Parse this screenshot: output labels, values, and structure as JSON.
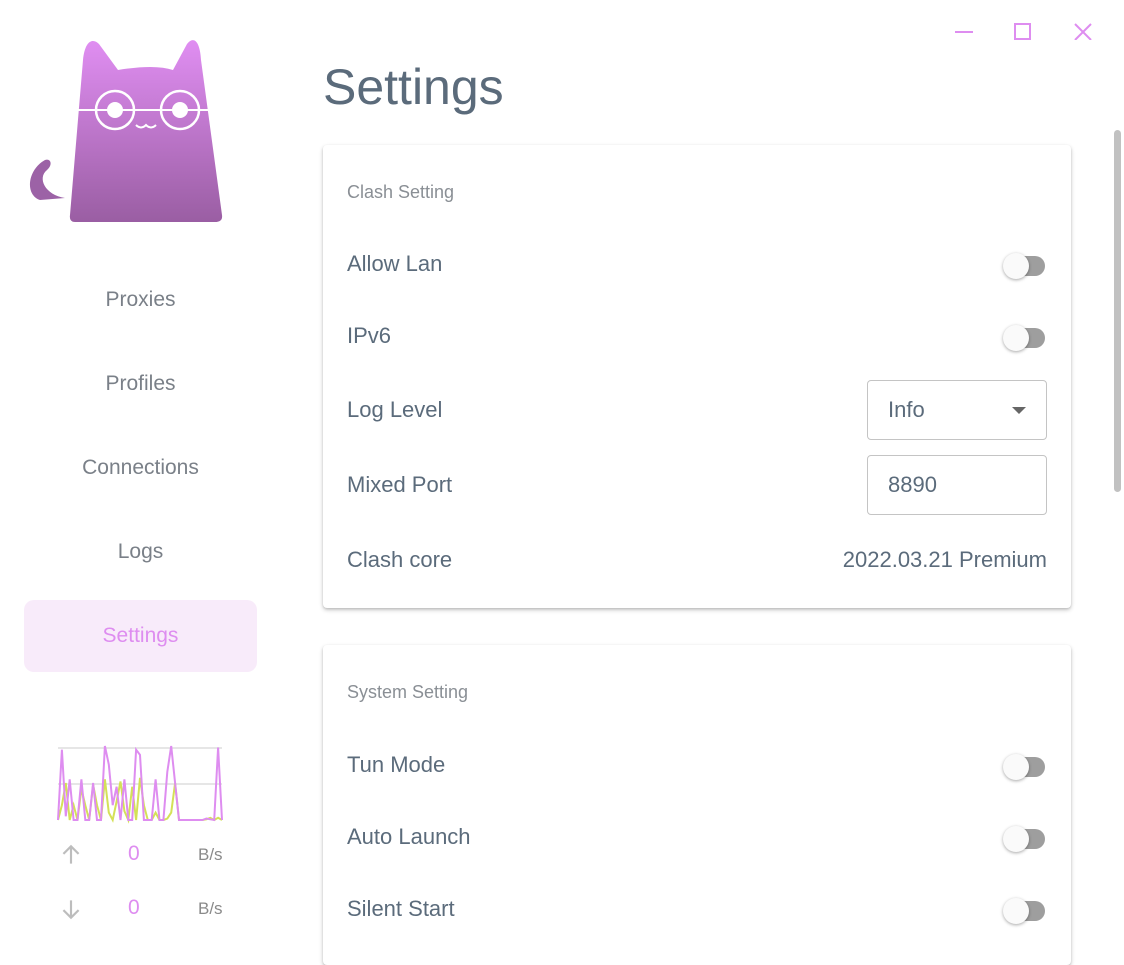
{
  "window": {
    "minimize_icon": "minimize-icon",
    "maximize_icon": "maximize-icon",
    "close_icon": "close-icon",
    "accent": "#de8df0"
  },
  "sidebar": {
    "items": [
      {
        "label": "Proxies"
      },
      {
        "label": "Profiles"
      },
      {
        "label": "Connections"
      },
      {
        "label": "Logs"
      },
      {
        "label": "Settings",
        "active": true
      }
    ],
    "traffic": {
      "upload_series": [
        0,
        0.95,
        0.05,
        0.55,
        0,
        0,
        0.55,
        0,
        0,
        0.5,
        0,
        0,
        1,
        0.75,
        0.2,
        0.45,
        0,
        0.55,
        0,
        0,
        0.95,
        0.88,
        0,
        0,
        0,
        0.55,
        0,
        0,
        0.65,
        1,
        0.5,
        0,
        0,
        0,
        0,
        0,
        0,
        0,
        0.02,
        0.01,
        0,
        0.98,
        0
      ],
      "download_series": [
        0,
        0.2,
        0.5,
        0,
        0.2,
        0,
        0.42,
        0.2,
        0,
        0.48,
        0.2,
        0,
        0.55,
        0.1,
        0,
        0.25,
        0.52,
        0.12,
        0,
        0.45,
        0,
        0.57,
        0.2,
        0,
        0,
        0.1,
        0,
        0,
        0.02,
        0.1,
        0.5,
        0,
        0,
        0,
        0,
        0,
        0,
        0,
        0.01,
        0.03,
        0,
        0.03,
        0
      ],
      "upload_color": "#de8df0",
      "download_color": "#d4e157",
      "upload": {
        "value": "0",
        "unit": "B/s"
      },
      "download": {
        "value": "0",
        "unit": "B/s"
      }
    }
  },
  "page": {
    "title": "Settings"
  },
  "clash_setting": {
    "title": "Clash Setting",
    "allow_lan": {
      "label": "Allow Lan",
      "enabled": false
    },
    "ipv6": {
      "label": "IPv6",
      "enabled": false
    },
    "log_level": {
      "label": "Log Level",
      "value": "Info"
    },
    "mixed_port": {
      "label": "Mixed Port",
      "value": "8890"
    },
    "clash_core": {
      "label": "Clash core",
      "value": "2022.03.21 Premium"
    }
  },
  "system_setting": {
    "title": "System Setting",
    "tun_mode": {
      "label": "Tun Mode",
      "enabled": false
    },
    "auto_launch": {
      "label": "Auto Launch",
      "enabled": false
    },
    "silent_start": {
      "label": "Silent Start",
      "enabled": false
    }
  }
}
